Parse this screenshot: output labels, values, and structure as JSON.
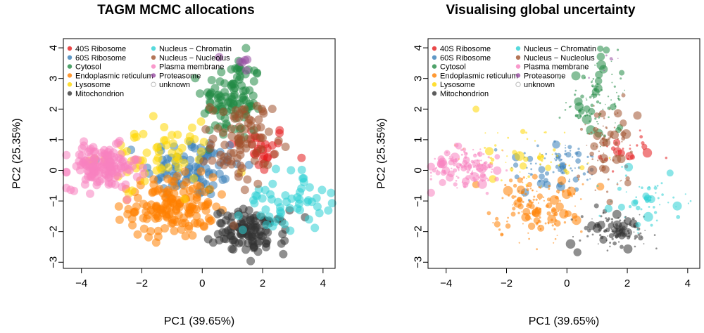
{
  "colors": {
    "40S Ribosome": "#e41a1c",
    "60S Ribosome": "#377eb8",
    "Cytosol": "#238b45",
    "Endoplasmic reticulum": "#ff7f00",
    "Lysosome": "#ffd700",
    "Mitochondrion": "#333333",
    "Nucleus - Chromatin": "#2ccfd3",
    "Nucleus - Nucleolus": "#a0522d",
    "Plasma membrane": "#f781bf",
    "Proteasome": "#984ea3",
    "unknown": "#bbbbbb"
  },
  "legend": {
    "col1": [
      "40S Ribosome",
      "60S Ribosome",
      "Cytosol",
      "Endoplasmic reticulum",
      "Lysosome",
      "Mitochondrion"
    ],
    "col2": [
      "Nucleus − Chromatin",
      "Nucleus − Nucleolus",
      "Plasma membrane",
      "Proteasome",
      "unknown"
    ],
    "keys2": [
      "Nucleus - Chromatin",
      "Nucleus - Nucleolus",
      "Plasma membrane",
      "Proteasome",
      "unknown"
    ]
  },
  "chart_data": [
    {
      "type": "scatter",
      "title": "TAGM MCMC allocations",
      "xlabel": "PC1 (39.65%)",
      "ylabel": "PC2 (25.35%)",
      "xlim": [
        -4.6,
        4.4
      ],
      "ylim": [
        -3.2,
        4.3
      ],
      "xticks": [
        -4,
        -2,
        0,
        2,
        4
      ],
      "yticks": [
        -3,
        -2,
        -1,
        0,
        1,
        2,
        3,
        4
      ],
      "point_size": "uniform",
      "grid": false,
      "legend_position": "top-left",
      "clusters": [
        {
          "class": "40S Ribosome",
          "center": [
            1.9,
            0.7
          ],
          "spread": [
            0.5,
            0.4
          ],
          "n": 30
        },
        {
          "class": "60S Ribosome",
          "center": [
            -0.3,
            0.1
          ],
          "spread": [
            0.8,
            0.5
          ],
          "n": 90
        },
        {
          "class": "Cytosol",
          "center": [
            1.0,
            2.3
          ],
          "spread": [
            0.5,
            0.7
          ],
          "n": 110
        },
        {
          "class": "Endoplasmic reticulum",
          "center": [
            -1.0,
            -1.2
          ],
          "spread": [
            0.7,
            0.5
          ],
          "n": 150
        },
        {
          "class": "Lysosome",
          "center": [
            -1.5,
            0.5
          ],
          "spread": [
            1.0,
            0.5
          ],
          "n": 60
        },
        {
          "class": "Mitochondrion",
          "center": [
            1.6,
            -2.0
          ],
          "spread": [
            0.6,
            0.35
          ],
          "n": 110
        },
        {
          "class": "Nucleus - Chromatin",
          "center": [
            2.8,
            -1.0
          ],
          "spread": [
            0.7,
            0.5
          ],
          "n": 55
        },
        {
          "class": "Nucleus - Nucleolus",
          "center": [
            1.3,
            0.9
          ],
          "spread": [
            0.5,
            0.7
          ],
          "n": 80
        },
        {
          "class": "Plasma membrane",
          "center": [
            -3.3,
            0.1
          ],
          "spread": [
            0.6,
            0.35
          ],
          "n": 140
        },
        {
          "class": "Proteasome",
          "center": [
            1.2,
            3.4
          ],
          "spread": [
            0.25,
            0.3
          ],
          "n": 6
        }
      ]
    },
    {
      "type": "scatter",
      "title": "Visualising global uncertainty",
      "xlabel": "PC1 (39.65%)",
      "ylabel": "PC2 (25.35%)",
      "xlim": [
        -4.6,
        4.4
      ],
      "ylim": [
        -3.2,
        4.3
      ],
      "xticks": [
        -4,
        -2,
        0,
        2,
        4
      ],
      "yticks": [
        -3,
        -2,
        -1,
        0,
        1,
        2,
        3,
        4
      ],
      "point_size": "scaled by allocation certainty",
      "grid": false,
      "legend_position": "top-left",
      "clusters": [
        {
          "class": "40S Ribosome",
          "center": [
            1.9,
            0.7
          ],
          "spread": [
            0.5,
            0.4
          ],
          "n": 30
        },
        {
          "class": "60S Ribosome",
          "center": [
            -0.3,
            0.1
          ],
          "spread": [
            0.8,
            0.5
          ],
          "n": 90
        },
        {
          "class": "Cytosol",
          "center": [
            1.0,
            2.3
          ],
          "spread": [
            0.5,
            0.7
          ],
          "n": 110
        },
        {
          "class": "Endoplasmic reticulum",
          "center": [
            -1.0,
            -1.2
          ],
          "spread": [
            0.7,
            0.5
          ],
          "n": 150
        },
        {
          "class": "Lysosome",
          "center": [
            -1.5,
            0.5
          ],
          "spread": [
            1.0,
            0.5
          ],
          "n": 60
        },
        {
          "class": "Mitochondrion",
          "center": [
            1.6,
            -2.0
          ],
          "spread": [
            0.6,
            0.35
          ],
          "n": 110
        },
        {
          "class": "Nucleus - Chromatin",
          "center": [
            2.8,
            -1.0
          ],
          "spread": [
            0.7,
            0.5
          ],
          "n": 55
        },
        {
          "class": "Nucleus - Nucleolus",
          "center": [
            1.3,
            0.9
          ],
          "spread": [
            0.5,
            0.7
          ],
          "n": 80
        },
        {
          "class": "Plasma membrane",
          "center": [
            -3.3,
            0.1
          ],
          "spread": [
            0.6,
            0.35
          ],
          "n": 140
        },
        {
          "class": "Proteasome",
          "center": [
            1.2,
            3.4
          ],
          "spread": [
            0.25,
            0.3
          ],
          "n": 6
        }
      ]
    }
  ]
}
